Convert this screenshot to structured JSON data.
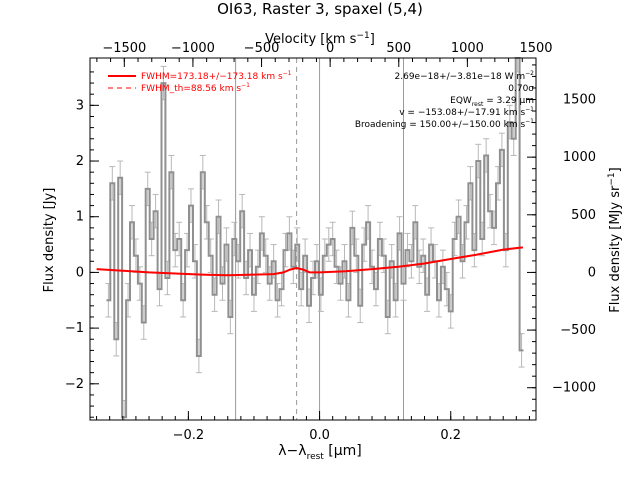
{
  "chart_data": {
    "type": "line",
    "title": "OI63, Raster 3, spaxel (5,4)",
    "xlabel_main": "λ−λ",
    "xlabel_sub": "rest",
    "xlabel_unit": " [μm]",
    "top_xlabel_main": "Velocity [km s",
    "top_xlabel_sup": "−1",
    "top_xlabel_end": "]",
    "ylabel_left": "Flux density [Jy]",
    "ylabel_right_main": "Flux density [MJy sr",
    "ylabel_right_sup": "−1",
    "ylabel_right_end": "]",
    "xlim": [
      -0.35,
      0.33
    ],
    "ylim": [
      -2.65,
      3.85
    ],
    "top_velocity_lim": [
      -1750,
      1500
    ],
    "right_ylim": [
      -1280,
      1860
    ],
    "x_ticks": [
      -0.2,
      0.0,
      0.2
    ],
    "x_tick_labels": [
      "−0.2",
      "0.0",
      "0.2"
    ],
    "y_ticks": [
      -2,
      -1,
      0,
      1,
      2,
      3
    ],
    "y_tick_labels": [
      "−2",
      "−1",
      "0",
      "1",
      "2",
      "3"
    ],
    "top_ticks": [
      -1500,
      -1000,
      -500,
      0,
      500,
      1000,
      1500
    ],
    "top_tick_labels": [
      "−1500",
      "−1000",
      "−500",
      "0",
      "500",
      "1000",
      "1500"
    ],
    "right_ticks": [
      -1000,
      -500,
      0,
      500,
      1000,
      1500
    ],
    "right_tick_labels": [
      "−1000",
      "−500",
      "0",
      "500",
      "1000",
      "1500"
    ],
    "vertical_lines": [
      -0.128,
      0.0,
      0.128
    ],
    "dashed_vertical_line": -0.035,
    "legend": {
      "placement": "top-left",
      "entries": [
        {
          "main": "FWHM=173.18+/−173.18 km s",
          "sup": "−1",
          "style": "solid",
          "color": "#ff0000"
        },
        {
          "main": "FWHM_th=88.56 km s",
          "sup": "−1",
          "style": "dashed",
          "color": "#ff0000"
        }
      ]
    },
    "annotations": [
      {
        "main": "2.69e−18+/−3.81e−18 W m",
        "sup": "−2",
        "sub": "",
        "end": ""
      },
      {
        "main": "0.70σ",
        "sup": "",
        "sub": "",
        "end": ""
      },
      {
        "main": "EQW",
        "sup": "",
        "sub": "rest",
        "end": "= 3.29 μm"
      },
      {
        "main": "v = −153.08+/−17.91 km s",
        "sup": "−1",
        "sub": "",
        "end": ""
      },
      {
        "main": "Broadening = 150.00+/−150.00 km s",
        "sup": "−1",
        "sub": "",
        "end": ""
      }
    ],
    "series": [
      {
        "kind": "spectrum",
        "color": "#909090",
        "x": [
          -0.322,
          -0.316,
          -0.31,
          -0.304,
          -0.298,
          -0.292,
          -0.286,
          -0.28,
          -0.274,
          -0.268,
          -0.262,
          -0.256,
          -0.25,
          -0.244,
          -0.238,
          -0.232,
          -0.226,
          -0.22,
          -0.214,
          -0.208,
          -0.202,
          -0.196,
          -0.19,
          -0.184,
          -0.178,
          -0.172,
          -0.166,
          -0.16,
          -0.154,
          -0.148,
          -0.142,
          -0.136,
          -0.13,
          -0.124,
          -0.118,
          -0.112,
          -0.106,
          -0.1,
          -0.094,
          -0.088,
          -0.082,
          -0.076,
          -0.07,
          -0.064,
          -0.058,
          -0.052,
          -0.046,
          -0.04,
          -0.034,
          -0.028,
          -0.022,
          -0.016,
          -0.01,
          -0.004,
          0.002,
          0.008,
          0.014,
          0.02,
          0.026,
          0.032,
          0.038,
          0.044,
          0.05,
          0.056,
          0.062,
          0.068,
          0.074,
          0.08,
          0.086,
          0.092,
          0.098,
          0.104,
          0.11,
          0.116,
          0.122,
          0.128,
          0.134,
          0.14,
          0.146,
          0.152,
          0.158,
          0.164,
          0.17,
          0.176,
          0.182,
          0.188,
          0.194,
          0.2,
          0.206,
          0.212,
          0.218,
          0.224,
          0.23,
          0.236,
          0.242,
          0.248,
          0.254,
          0.26,
          0.266,
          0.272,
          0.278,
          0.284,
          0.29,
          0.296,
          0.302,
          0.308
        ],
        "y": [
          -0.5,
          1.6,
          -1.2,
          1.7,
          -2.6,
          -0.5,
          0.9,
          0.3,
          -0.2,
          -0.9,
          1.5,
          0.6,
          1.1,
          -0.3,
          3.4,
          -0.1,
          1.8,
          0.4,
          0.6,
          -0.5,
          0.4,
          1.2,
          0.2,
          -1.5,
          1.8,
          0.9,
          0.3,
          -0.4,
          1.0,
          -0.2,
          0.5,
          -0.8,
          0.6,
          0.2,
          1.1,
          -0.1,
          0.4,
          -0.4,
          0.1,
          0.7,
          0.3,
          -0.2,
          0.2,
          -0.5,
          -0.3,
          0.4,
          0.7,
          0.1,
          0.5,
          -0.3,
          0.3,
          -0.6,
          -0.1,
          0.2,
          -0.4,
          0.3,
          0.5,
          0.6,
          0.1,
          -0.2,
          0.2,
          -0.5,
          0.8,
          0.3,
          -0.6,
          0.5,
          0.9,
          0.1,
          -0.3,
          0.6,
          0.3,
          -0.8,
          0.2,
          -0.5,
          0.7,
          -0.2,
          0.4,
          0.2,
          0.9,
          0.1,
          0.3,
          -0.4,
          0.5,
          0.2,
          -0.5,
          0.1,
          -0.3,
          -0.7,
          0.6,
          1.0,
          0.2,
          0.9,
          1.6,
          0.4,
          2.0,
          0.6,
          2.1,
          1.1,
          0.8,
          1.6,
          2.2,
          0.4,
          2.7,
          2.4,
          3.9,
          -1.4
        ],
        "err": 0.3
      },
      {
        "kind": "fit",
        "color": "#ff0000",
        "x": [
          -0.34,
          -0.3,
          -0.26,
          -0.22,
          -0.18,
          -0.14,
          -0.1,
          -0.07,
          -0.055,
          -0.045,
          -0.035,
          -0.025,
          -0.015,
          0.0,
          0.04,
          0.08,
          0.12,
          0.16,
          0.2,
          0.24,
          0.28,
          0.31
        ],
        "y": [
          0.06,
          0.03,
          0.0,
          -0.02,
          -0.04,
          -0.05,
          -0.04,
          -0.03,
          0.0,
          0.05,
          0.08,
          0.05,
          0.0,
          0.0,
          0.02,
          0.06,
          0.1,
          0.16,
          0.24,
          0.32,
          0.41,
          0.45
        ]
      }
    ]
  }
}
